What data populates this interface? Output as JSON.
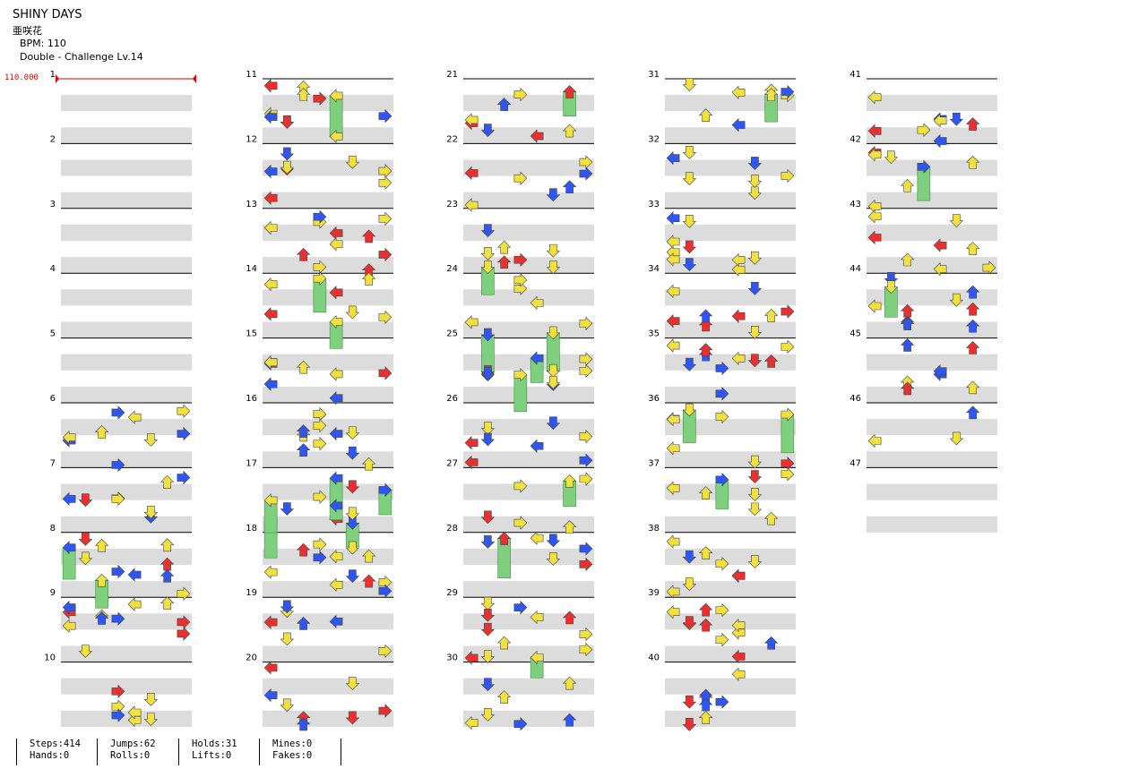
{
  "header": {
    "title": "SHINY DAYS",
    "artist": "亜咲花",
    "bpm": "BPM: 110",
    "difficulty": "Double - Challenge  Lv.14"
  },
  "bpm_marker": "110.000",
  "measures": [
    "1",
    "2",
    "3",
    "4",
    "5",
    "6",
    "7",
    "8",
    "9",
    "10",
    "11",
    "12",
    "13",
    "14",
    "15",
    "16",
    "17",
    "18",
    "19",
    "20",
    "21",
    "22",
    "23",
    "24",
    "25",
    "26",
    "27",
    "28",
    "29",
    "30",
    "31",
    "32",
    "33",
    "34",
    "35",
    "36",
    "37",
    "38",
    "39",
    "40",
    "41",
    "42",
    "43",
    "44",
    "45",
    "46",
    "47"
  ],
  "colors": {
    "left": "#2f56f0",
    "down": "#e8e83a",
    "up": "#e83a3a",
    "right": "#ee3030",
    "quarter_red": "#e83030",
    "eighth_blue": "#2f56f0",
    "sixteenth_yellow": "#f0e040",
    "mine_magenta": "#e040e0",
    "hold_green": "#7ed07e",
    "stripe_gray": "#dcdcdc",
    "bpm_red": "#e00000"
  },
  "icons": [
    "left-arrow-icon",
    "down-arrow-icon",
    "up-arrow-icon",
    "right-arrow-icon",
    "hold-body-icon"
  ],
  "stats": {
    "steps": "Steps:414",
    "hands": "Hands:0",
    "jumps": "Jumps:62",
    "rolls": "Rolls:0",
    "holds": "Holds:31",
    "lifts": "Lifts:0",
    "mines": "Mines:0",
    "fakes": "Fakes:0"
  }
}
